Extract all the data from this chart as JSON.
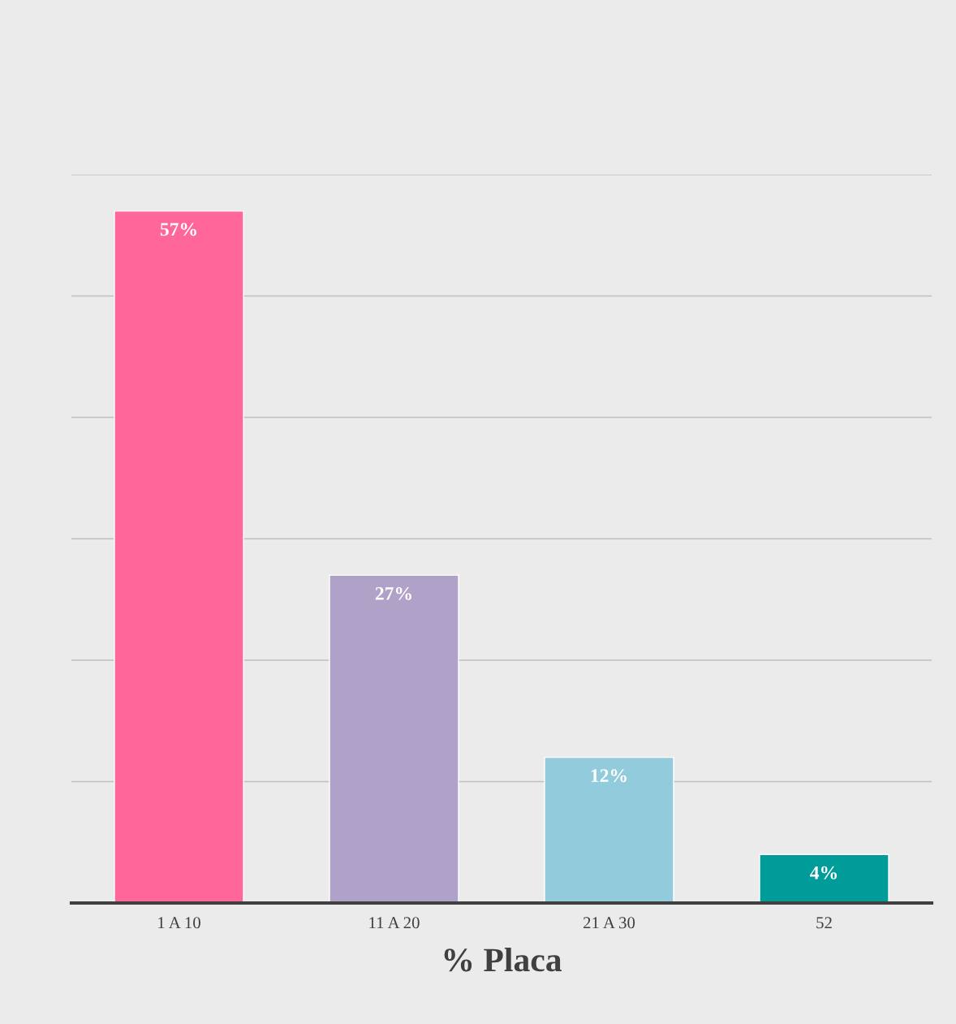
{
  "chart_data": {
    "type": "bar",
    "xlabel": "% Placa",
    "categories": [
      "1 A 10",
      "11 A 20",
      "21 A 30",
      "52"
    ],
    "values": [
      57,
      27,
      12,
      4
    ],
    "colors": [
      "#ff6699",
      "#b0a1c8",
      "#92cbdc",
      "#009c9a"
    ],
    "value_labels": [
      "57%",
      "27%",
      "12%",
      "4%"
    ],
    "ylim": [
      0,
      60
    ],
    "yticks": [
      {
        "value": 0,
        "label": null
      },
      {
        "value": 10,
        "label": null
      },
      {
        "value": 20,
        "label": null
      },
      {
        "value": 30,
        "label": null
      },
      {
        "value": 40,
        "label": null
      },
      {
        "value": 50,
        "label": null
      },
      {
        "value": 60,
        "label": null
      }
    ],
    "tick_labels": "x",
    "grid": "y",
    "legend": false
  }
}
